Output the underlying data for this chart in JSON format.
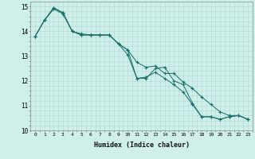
{
  "xlabel": "Humidex (Indice chaleur)",
  "ylabel": "",
  "background_color": "#cff0ea",
  "grid_color": "#aed8d0",
  "line_color": "#1a6e68",
  "xlim": [
    -0.5,
    23.5
  ],
  "ylim": [
    10,
    15.2
  ],
  "xticks": [
    0,
    1,
    2,
    3,
    4,
    5,
    6,
    7,
    8,
    9,
    10,
    11,
    12,
    13,
    14,
    15,
    16,
    17,
    18,
    19,
    20,
    21,
    22,
    23
  ],
  "yticks": [
    10,
    11,
    12,
    13,
    14,
    15
  ],
  "series": [
    [
      13.8,
      14.45,
      14.9,
      14.7,
      14.0,
      13.9,
      13.85,
      13.85,
      13.85,
      13.5,
      13.05,
      12.1,
      12.1,
      12.5,
      12.55,
      12.0,
      11.85,
      11.1,
      10.55,
      10.55,
      10.45,
      10.55,
      10.6,
      10.45
    ],
    [
      13.8,
      14.45,
      14.95,
      14.75,
      14.0,
      13.85,
      13.85,
      13.85,
      13.85,
      13.5,
      13.25,
      12.75,
      12.55,
      12.6,
      12.3,
      12.3,
      11.95,
      11.7,
      11.35,
      11.05,
      10.75,
      10.6,
      10.6,
      10.45
    ],
    [
      13.8,
      14.45,
      14.95,
      14.75,
      14.0,
      13.85,
      13.85,
      13.85,
      13.85,
      13.5,
      13.25,
      12.1,
      12.15,
      12.35,
      12.1,
      11.85,
      11.55,
      11.05,
      10.55,
      10.55,
      10.45,
      10.55,
      10.6,
      10.45
    ]
  ]
}
